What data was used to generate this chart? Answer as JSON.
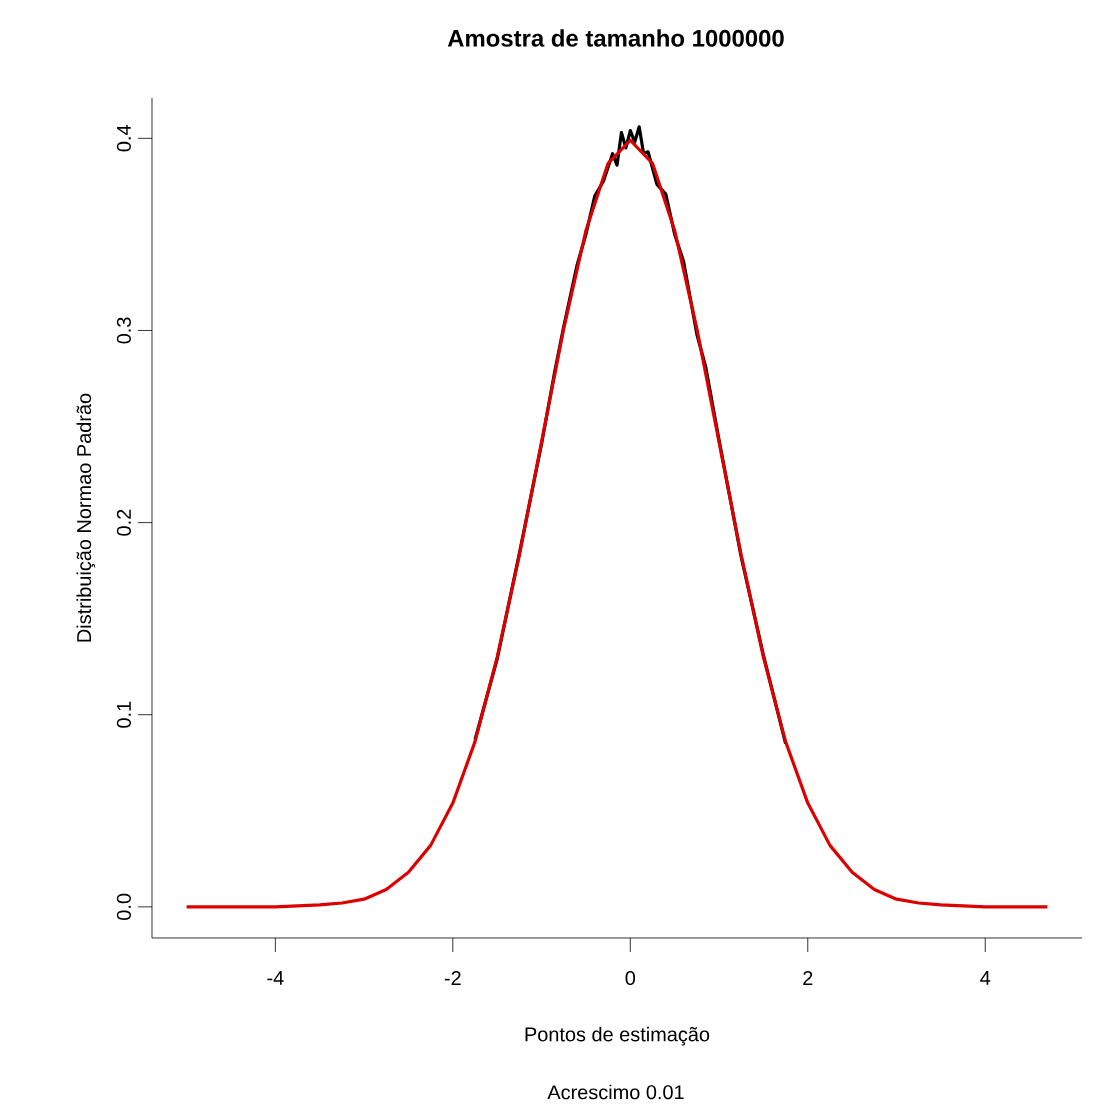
{
  "chart_data": {
    "type": "line",
    "title": "Amostra de tamanho 1000000",
    "xlabel": "Pontos de estimação",
    "ylabel": "Distribuição Normao Padrão",
    "annotations": [
      "Acrescimo 0.01"
    ],
    "xlim": [
      -5.39,
      5.09
    ],
    "ylim": [
      -0.0162,
      0.421
    ],
    "xticks": [
      -4,
      -2,
      0,
      2,
      4
    ],
    "yticks": [
      {
        "value": 0,
        "label": "0.0"
      },
      0.1,
      0.2,
      0.3,
      0.4
    ],
    "grid": false,
    "legend": false,
    "marker": "none",
    "line_style": "solid",
    "series": [
      {
        "color": "#000000",
        "x": [
          -1.75,
          -1.5,
          -1.25,
          -1,
          -0.85,
          -0.75,
          -0.6,
          -0.5,
          -0.4,
          -0.3,
          -0.2,
          -0.15,
          -0.1,
          -0.05,
          0,
          0.05,
          0.1,
          0.15,
          0.2,
          0.3,
          0.4,
          0.5,
          0.6,
          0.75,
          0.85,
          1,
          1.25,
          1.5,
          1.75
        ],
        "values": [
          0.087,
          0.129,
          0.184,
          0.241,
          0.279,
          0.302,
          0.334,
          0.35,
          0.37,
          0.378,
          0.392,
          0.386,
          0.403,
          0.395,
          0.404,
          0.398,
          0.406,
          0.392,
          0.393,
          0.376,
          0.371,
          0.35,
          0.336,
          0.298,
          0.281,
          0.243,
          0.182,
          0.131,
          0.085
        ]
      },
      {
        "color": "#dd0000",
        "x": [
          -5,
          -4.5,
          -4,
          -3.5,
          -3.25,
          -3,
          -2.75,
          -2.5,
          -2.25,
          -2,
          -1.75,
          -1.5,
          -1.25,
          -1,
          -0.75,
          -0.5,
          -0.25,
          0,
          0.25,
          0.5,
          0.75,
          1,
          1.25,
          1.5,
          1.75,
          2,
          2.25,
          2.5,
          2.75,
          3,
          3.25,
          3.5,
          4,
          4.5,
          4.7
        ],
        "values": [
          0.0,
          0.0,
          0.0,
          0.001,
          0.002,
          0.004,
          0.009,
          0.018,
          0.032,
          0.054,
          0.086,
          0.13,
          0.183,
          0.242,
          0.301,
          0.352,
          0.387,
          0.399,
          0.387,
          0.352,
          0.301,
          0.242,
          0.183,
          0.13,
          0.086,
          0.054,
          0.032,
          0.018,
          0.009,
          0.004,
          0.002,
          0.001,
          0.0,
          0.0,
          0.0
        ]
      }
    ]
  }
}
